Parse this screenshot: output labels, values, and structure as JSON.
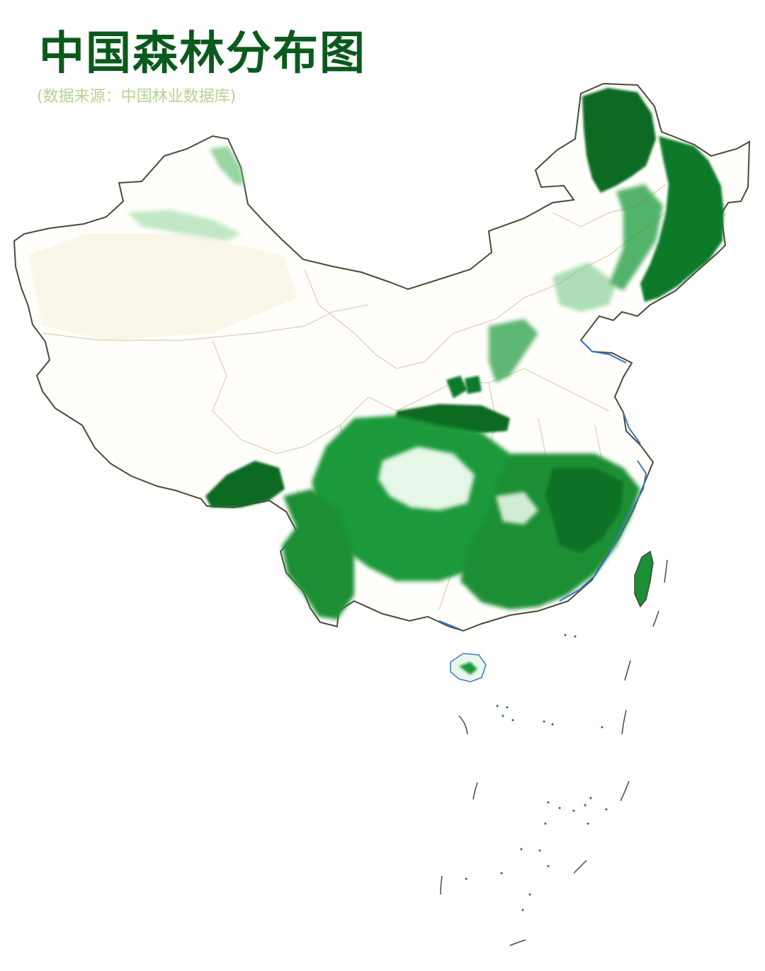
{
  "header": {
    "title": "中国森林分布图",
    "source_note": "(数据来源：中国林业数据库)"
  },
  "map": {
    "colors": {
      "forest_dense": "#0b6b24",
      "forest": "#1f9a3b",
      "forest_light": "#7fcf8c",
      "border": "#4a4a3a",
      "province_border": "#d8d0b8",
      "coast_water": "#3a78c8",
      "desert_tint": "#f3ecd9"
    }
  }
}
